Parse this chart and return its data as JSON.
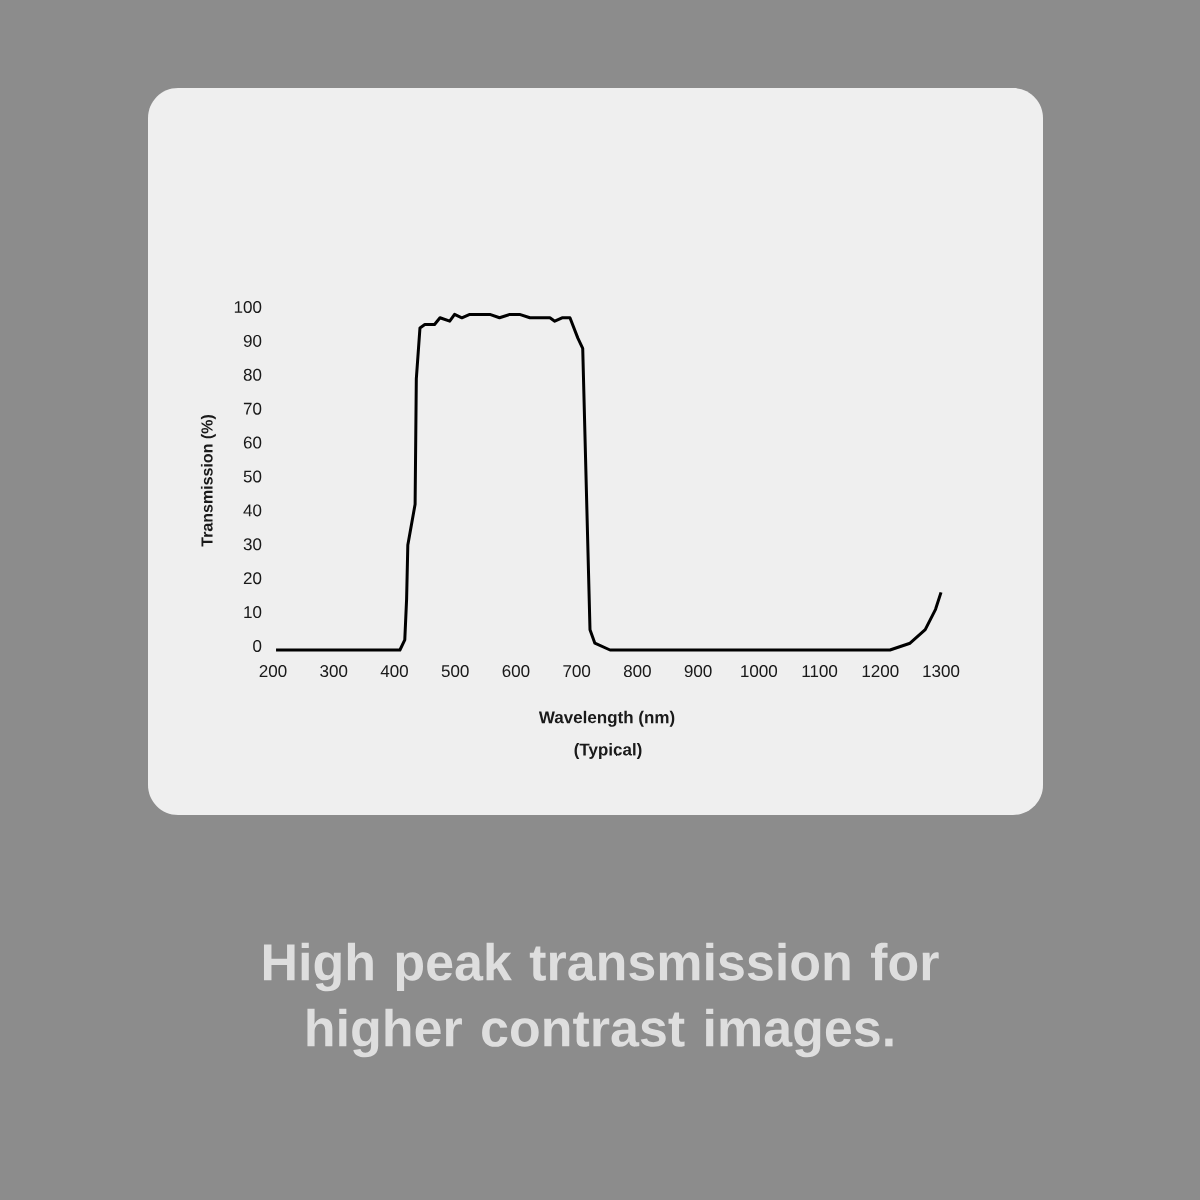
{
  "chart_data": {
    "type": "line",
    "xlabel": "Wavelength (nm)",
    "ylabel": "Transmission (%)",
    "annotations": [
      "(Typical)",
      "High peak transmission for higher contrast images."
    ],
    "x": [
      205,
      409,
      417,
      420,
      422,
      434,
      436,
      442,
      450,
      466,
      475,
      491,
      499,
      511,
      524,
      540,
      557,
      573,
      590,
      606,
      623,
      639,
      656,
      664,
      676,
      689,
      702,
      710,
      722,
      730,
      755,
      969,
      1183,
      1216,
      1249,
      1274,
      1291,
      1300
    ],
    "series": [
      {
        "color": "#000000",
        "values": [
          0,
          0,
          3,
          15,
          31,
          43,
          80,
          95,
          96,
          96,
          98,
          97,
          99,
          98,
          99,
          99,
          99,
          98,
          99,
          99,
          98,
          98,
          98,
          97,
          98,
          98,
          92,
          89,
          6,
          2,
          0,
          0,
          0,
          0,
          2,
          6,
          12,
          17
        ]
      }
    ],
    "xlim": [
      200,
      1300
    ],
    "ylim": [
      0,
      100
    ],
    "xticks": [
      200,
      300,
      400,
      500,
      600,
      700,
      800,
      900,
      1000,
      1100,
      1200,
      1300
    ],
    "yticks": [
      0,
      10,
      20,
      30,
      40,
      50,
      60,
      70,
      80,
      90,
      100
    ],
    "grid": false
  }
}
